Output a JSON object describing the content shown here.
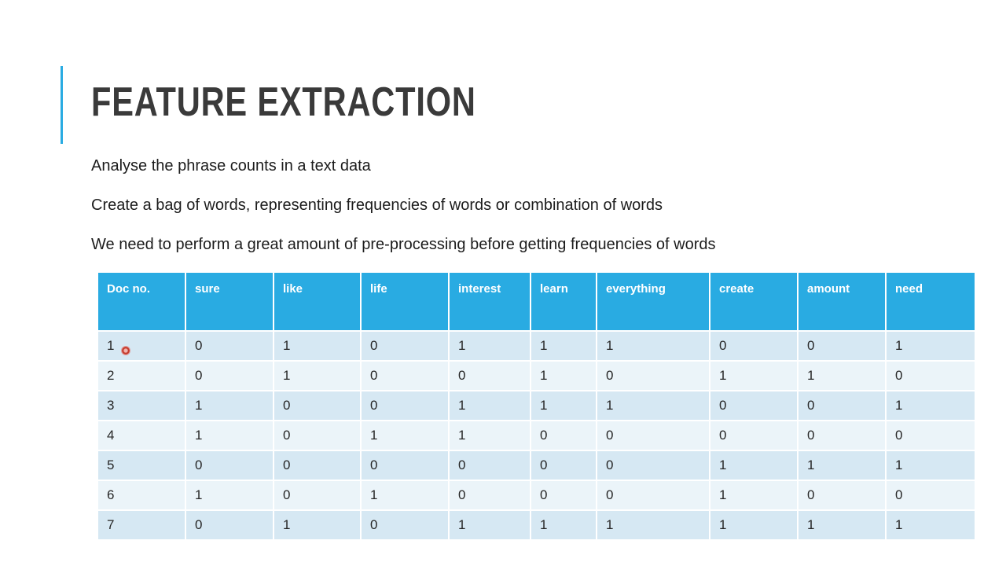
{
  "slide": {
    "title": "FEATURE EXTRACTION",
    "bullets": [
      "Analyse the phrase counts in a text data",
      "Create a bag of words, representing frequencies of words or combination of words",
      "We need to perform a great amount of pre-processing before getting frequencies of words"
    ]
  },
  "colors": {
    "accent": "#29ABE2",
    "header_bg": "#29ABE2",
    "row_odd": "#D6E8F3",
    "row_even": "#EBF4F9",
    "title_text": "#3A3A3A"
  },
  "chart_data": {
    "type": "table",
    "headers": [
      "Doc no.",
      "sure",
      "like",
      "life",
      "interest",
      "learn",
      "everything",
      "create",
      "amount",
      "need"
    ],
    "rows": [
      [
        "1",
        "0",
        "1",
        "0",
        "1",
        "1",
        "1",
        "0",
        "0",
        "1"
      ],
      [
        "2",
        "0",
        "1",
        "0",
        "0",
        "1",
        "0",
        "1",
        "1",
        "0"
      ],
      [
        "3",
        "1",
        "0",
        "0",
        "1",
        "1",
        "1",
        "0",
        "0",
        "1"
      ],
      [
        "4",
        "1",
        "0",
        "1",
        "1",
        "0",
        "0",
        "0",
        "0",
        "0"
      ],
      [
        "5",
        "0",
        "0",
        "0",
        "0",
        "0",
        "0",
        "1",
        "1",
        "1"
      ],
      [
        "6",
        "1",
        "0",
        "1",
        "0",
        "0",
        "0",
        "1",
        "0",
        "0"
      ],
      [
        "7",
        "0",
        "1",
        "0",
        "1",
        "1",
        "1",
        "1",
        "1",
        "1"
      ]
    ]
  }
}
